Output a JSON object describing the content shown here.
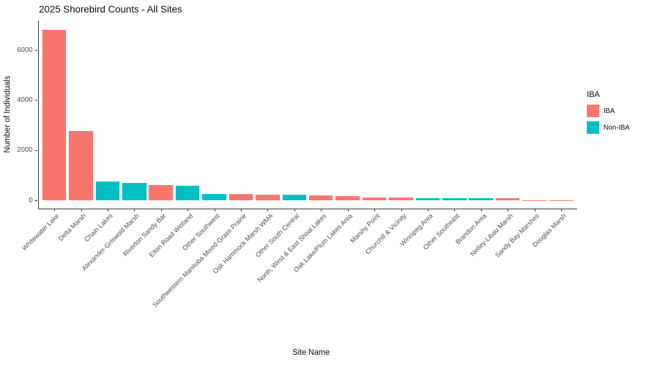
{
  "chart_data": {
    "type": "bar",
    "title": "2025 Shorebird Counts - All Sites",
    "xlabel": "Site Name",
    "ylabel": "Number of Individuals",
    "ylim": [
      0,
      7140
    ],
    "yticks": [
      0,
      2000,
      4000,
      6000
    ],
    "ytick_labels": [
      "0",
      "2000",
      "4000",
      "6000"
    ],
    "grid": false,
    "background": "#ffffff",
    "legend": {
      "title": "IBA",
      "position": "right",
      "entries": [
        {
          "label": "IBA",
          "color": "#F8766D"
        },
        {
          "label": "Non-IBA",
          "color": "#00BFC4"
        }
      ]
    },
    "categories": [
      "Whitewater Lake",
      "Delta Marsh",
      "Chain Lakes",
      "Alexander-Griswold Marsh",
      "Riverton Sandy Bar",
      "Elton Road Wetland",
      "Other Southwest",
      "Southwestern Manitoba Mixed-Grass Prairie",
      "Oak Hammock Marsh WMA",
      "Other South Central",
      "North, West & East Shoal Lakes",
      "Oak Lake/Plum Lakes Area",
      "Marshy Point",
      "Churchill & Vicinity",
      "Winnipeg Area",
      "Other Southeast",
      "Brandon Area",
      "Netley-Libau Marsh",
      "Sandy Bay Marshes",
      "Douglas Marsh"
    ],
    "bars": [
      {
        "site": "Whitewater Lake",
        "value": 6800,
        "group": "IBA"
      },
      {
        "site": "Delta Marsh",
        "value": 2780,
        "group": "IBA"
      },
      {
        "site": "Chain Lakes",
        "value": 760,
        "group": "Non-IBA"
      },
      {
        "site": "Alexander-Griswold Marsh",
        "value": 700,
        "group": "Non-IBA"
      },
      {
        "site": "Riverton Sandy Bar",
        "value": 610,
        "group": "IBA"
      },
      {
        "site": "Elton Road Wetland",
        "value": 570,
        "group": "Non-IBA"
      },
      {
        "site": "Other Southwest",
        "value": 260,
        "group": "Non-IBA"
      },
      {
        "site": "Southwestern Manitoba Mixed-Grass Prairie",
        "value": 250,
        "group": "IBA"
      },
      {
        "site": "Oak Hammock Marsh WMA",
        "value": 235,
        "group": "IBA"
      },
      {
        "site": "Other South Central",
        "value": 225,
        "group": "Non-IBA"
      },
      {
        "site": "North, West & East Shoal Lakes",
        "value": 190,
        "group": "IBA"
      },
      {
        "site": "Oak Lake/Plum Lakes Area",
        "value": 160,
        "group": "IBA"
      },
      {
        "site": "Marshy Point",
        "value": 110,
        "group": "IBA"
      },
      {
        "site": "Churchill & Vicinity",
        "value": 100,
        "group": "IBA"
      },
      {
        "site": "Winnipeg Area",
        "value": 95,
        "group": "Non-IBA"
      },
      {
        "site": "Other Southeast",
        "value": 90,
        "group": "Non-IBA"
      },
      {
        "site": "Brandon Area",
        "value": 80,
        "group": "Non-IBA"
      },
      {
        "site": "Netley-Libau Marsh",
        "value": 75,
        "group": "IBA"
      },
      {
        "site": "Sandy Bay Marshes",
        "value": 10,
        "group": "IBA"
      },
      {
        "site": "Douglas Marsh",
        "value": 5,
        "group": "IBA"
      }
    ]
  },
  "colors": {
    "iba": "#F8766D",
    "non_iba": "#00BFC4",
    "axis_line": "#333333",
    "tick_text": "#4d4d4d",
    "title_text": "#0a0a0a"
  }
}
